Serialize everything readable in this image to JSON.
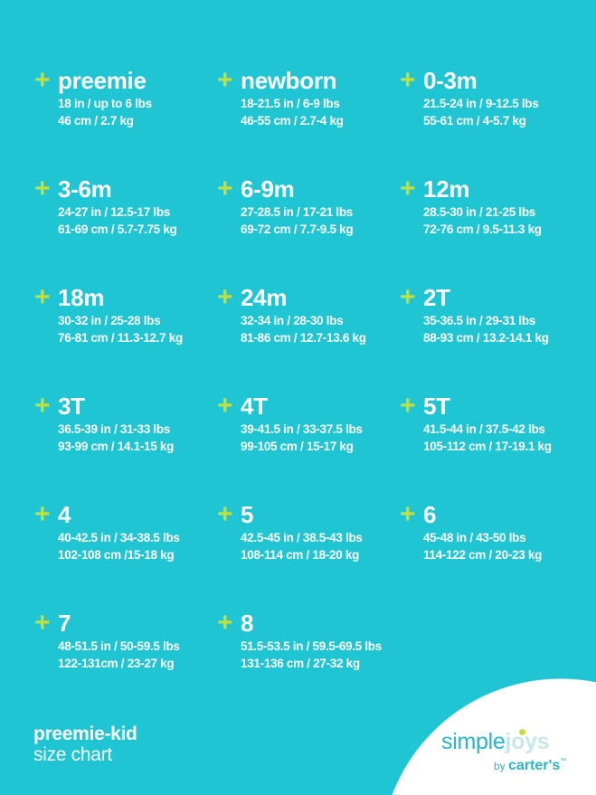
{
  "colors": {
    "background": "#1fc5d3",
    "accent": "#c5df3a",
    "text": "#ffffff"
  },
  "sizes": [
    {
      "label": "preemie",
      "imperial": "18 in / up to 6 lbs",
      "metric": "46 cm / 2.7 kg"
    },
    {
      "label": "newborn",
      "imperial": "18-21.5 in / 6-9 lbs",
      "metric": "46-55 cm / 2.7-4 kg"
    },
    {
      "label": "0-3m",
      "imperial": "21.5-24 in / 9-12.5 lbs",
      "metric": "55-61 cm / 4-5.7  kg"
    },
    {
      "label": "3-6m",
      "imperial": "24-27 in / 12.5-17 lbs",
      "metric": "61-69 cm / 5.7-7.75 kg"
    },
    {
      "label": "6-9m",
      "imperial": "27-28.5 in / 17-21 lbs",
      "metric": "69-72 cm / 7.7-9.5 kg"
    },
    {
      "label": "12m",
      "imperial": "28.5-30 in / 21-25 lbs",
      "metric": "72-76 cm / 9.5-11.3 kg"
    },
    {
      "label": "18m",
      "imperial": "30-32 in / 25-28 lbs",
      "metric": "76-81 cm / 11.3-12.7 kg"
    },
    {
      "label": "24m",
      "imperial": "32-34 in / 28-30 lbs",
      "metric": "81-86 cm / 12.7-13.6 kg"
    },
    {
      "label": "2T",
      "imperial": "35-36.5 in / 29-31 lbs",
      "metric": "88-93 cm / 13.2-14.1 kg"
    },
    {
      "label": "3T",
      "imperial": "36.5-39 in / 31-33 lbs",
      "metric": "93-99 cm / 14.1-15 kg"
    },
    {
      "label": "4T",
      "imperial": "39-41.5 in / 33-37.5 lbs",
      "metric": "99-105 cm / 15-17 kg"
    },
    {
      "label": "5T",
      "imperial": "41.5-44 in / 37.5-42 lbs",
      "metric": "105-112 cm / 17-19.1 kg"
    },
    {
      "label": "4",
      "imperial": "40-42.5 in / 34-38.5 lbs",
      "metric": "102-108 cm /15-18 kg"
    },
    {
      "label": "5",
      "imperial": "42.5-45 in / 38.5-43 lbs",
      "metric": "108-114 cm / 18-20 kg"
    },
    {
      "label": "6",
      "imperial": "45-48 in / 43-50 lbs",
      "metric": "114-122 cm / 20-23 kg"
    },
    {
      "label": "7",
      "imperial": "48-51.5 in / 50-59.5 lbs",
      "metric": "122-131cm / 23-27 kg"
    },
    {
      "label": "8",
      "imperial": "51.5-53.5 in / 59.5-69.5 lbs",
      "metric": "131-136 cm / 27-32 kg"
    }
  ],
  "plus_symbol": "+",
  "footer": {
    "line1": "preemie-kid",
    "line2": "size chart"
  },
  "logo": {
    "simple": "simple",
    "joys": "joys",
    "by": "by",
    "carters": "carter's",
    "tm": "™"
  }
}
